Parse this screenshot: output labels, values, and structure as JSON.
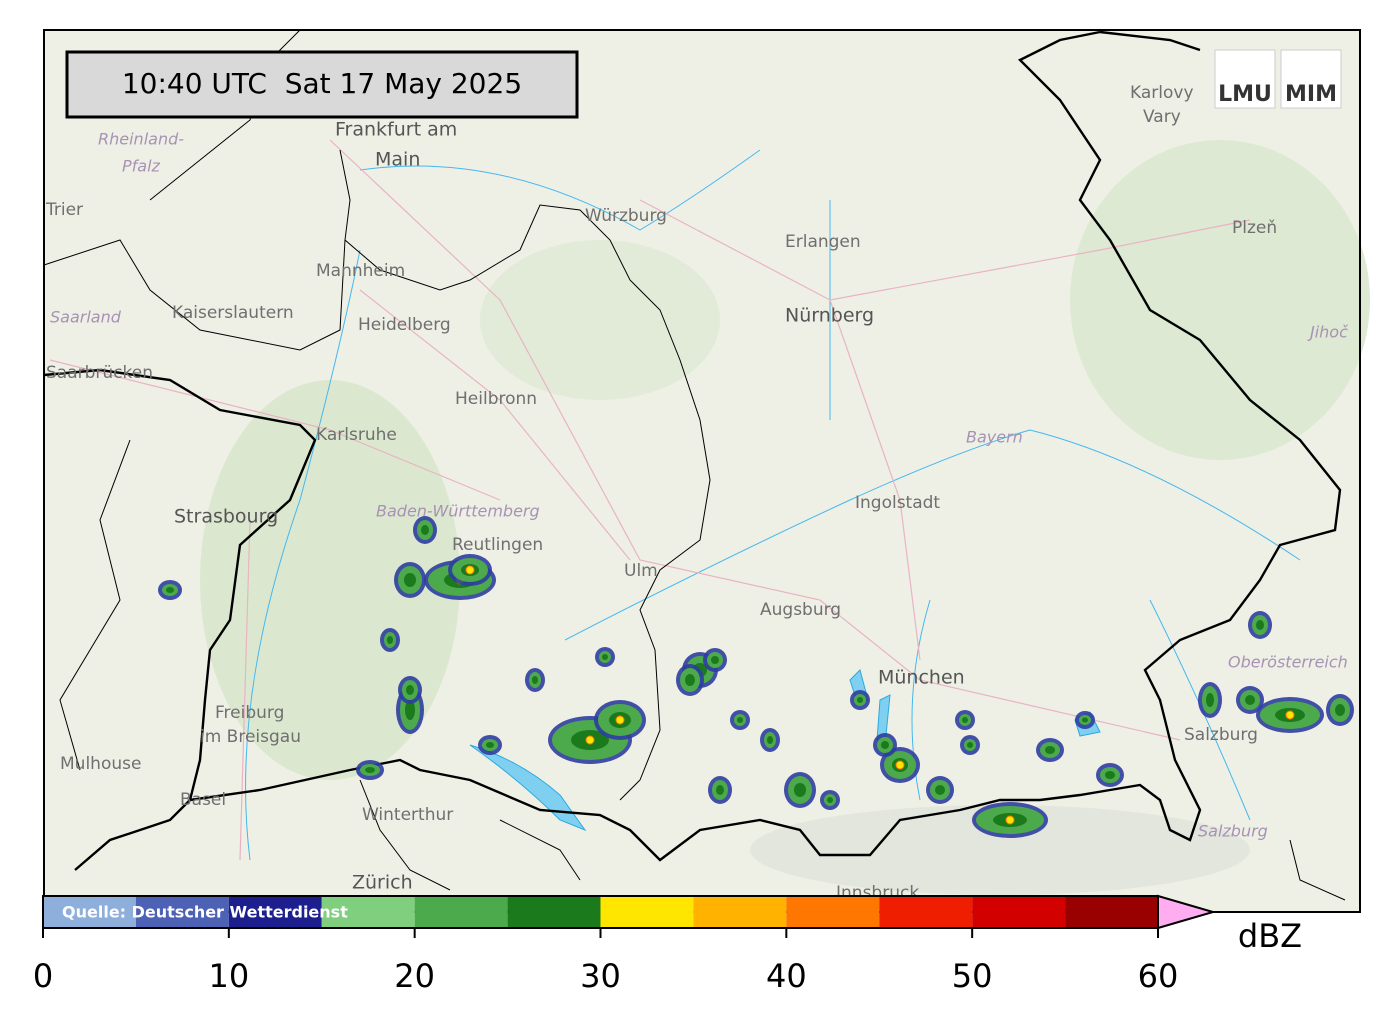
{
  "header": {
    "timestamp": "10:40 UTC  Sat 17 May 2025"
  },
  "logo": {
    "left": "LMU",
    "right": "MIM"
  },
  "places": [
    "Frankfurt am",
    "Main",
    "Rheinland-",
    "Pfalz",
    "Trier",
    "Würzburg",
    "Erlangen",
    "Nürnberg",
    "Mannheim",
    "Kaiserslautern",
    "Heidelberg",
    "Saarland",
    "Saarbrücken",
    "Heilbronn",
    "Karlsruhe",
    "Strasbourg",
    "Baden-Württemberg",
    "Reutlingen",
    "Ulm",
    "Augsburg",
    "Ingolstadt",
    "Bayern",
    "München",
    "Freiburg",
    "im Breisgau",
    "Mulhouse",
    "Basel",
    "Winterthur",
    "Zürich",
    "Innsbruck",
    "Salzburg",
    "Salzburg",
    "Oberösterreich",
    "Plzeň",
    "Karlovy",
    "Vary",
    "Jihoč"
  ],
  "colorbar": {
    "bounds": [
      0,
      5,
      10,
      15,
      20,
      25,
      30,
      35,
      40,
      45,
      50,
      55,
      60
    ],
    "colors": [
      "#8eaedb",
      "#4d62b4",
      "#1d1f8f",
      "#7fcf7f",
      "#4caa4c",
      "#1b7a1b",
      "#ffe600",
      "#ffb300",
      "#ff7700",
      "#f01e00",
      "#d30000",
      "#990000"
    ],
    "extend_color": "#ffadf0",
    "ticks": [
      0,
      10,
      20,
      30,
      40,
      50,
      60
    ],
    "label": "dBZ",
    "source": "Quelle: Deutscher Wetterdienst"
  }
}
